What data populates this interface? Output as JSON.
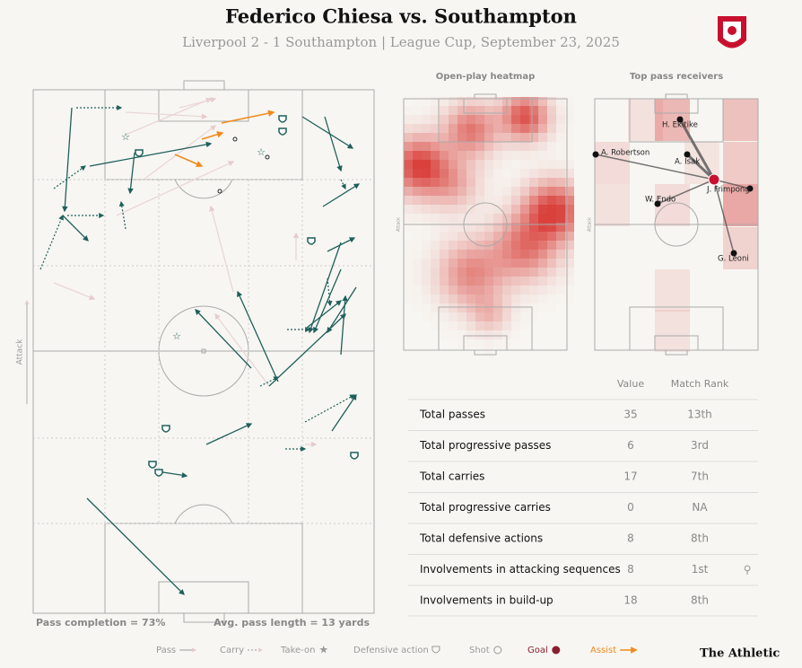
{
  "header": {
    "title": "Federico Chiesa vs. Southampton",
    "subtitle": "Liverpool 2 - 1 Southampton | League Cup, September 23, 2025"
  },
  "pitch": {
    "direction": "Attack",
    "pass_completion": "Pass completion = 73%",
    "avg_pass_length": "Avg. pass length = 13 yards"
  },
  "heatmap": {
    "title": "Open-play heatmap",
    "direction": "Attack"
  },
  "receivers": {
    "title": "Top pass receivers",
    "direction": "Attack",
    "players": [
      "H. Ekitike",
      "A. Isak",
      "A. Robertson",
      "J. Frimpong",
      "W. Endo",
      "G. Leoni"
    ]
  },
  "table": {
    "headers": [
      "Value",
      "Match Rank"
    ],
    "rows": [
      [
        "Total passes",
        35,
        "13th"
      ],
      [
        "Total progressive passes",
        6,
        "3rd"
      ],
      [
        "Total carries",
        17,
        "7th"
      ],
      [
        "Total progressive carries",
        0,
        "NA"
      ],
      [
        "Total defensive actions",
        8,
        "8th"
      ],
      [
        "Involvements in attacking sequences",
        8,
        "1st"
      ],
      [
        "Involvements in build-up",
        18,
        "8th"
      ]
    ]
  },
  "legend": [
    "Pass",
    "Carry",
    "Take-on",
    "Defensive action",
    "Shot",
    "Goal",
    "Assist"
  ],
  "brand": "The Athletic"
}
